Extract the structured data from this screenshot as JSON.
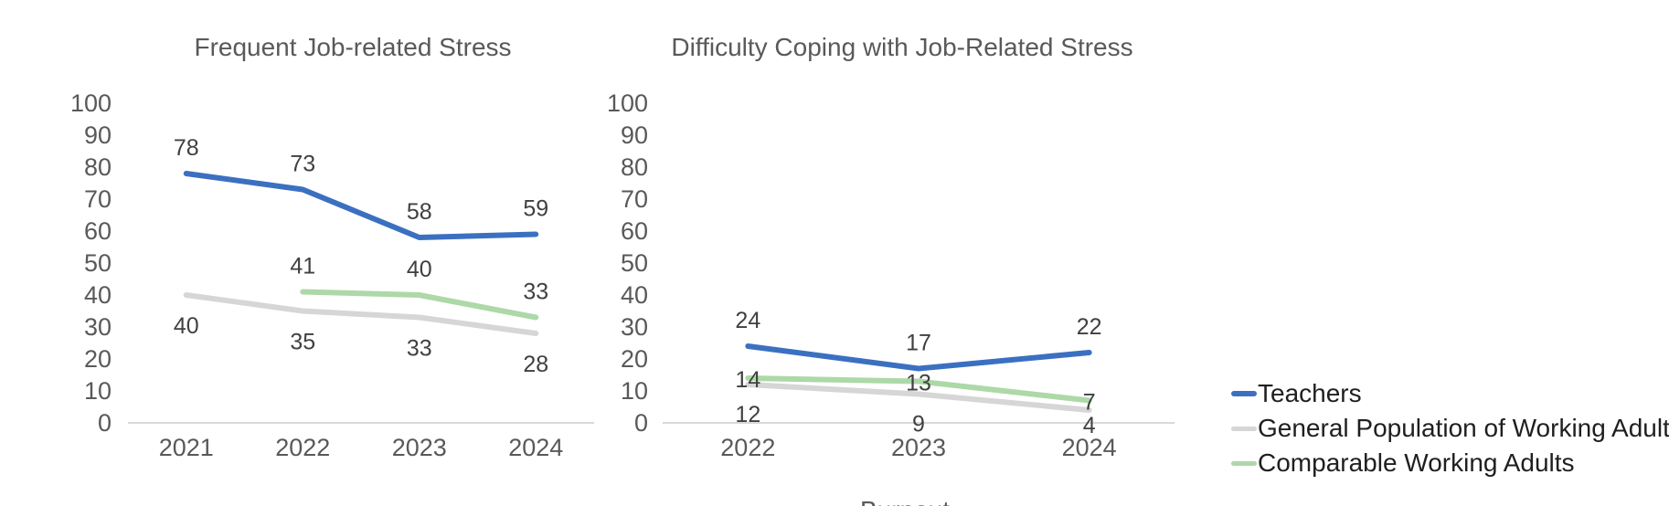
{
  "colors": {
    "teachers": "#3B70C1",
    "general_population": "#D6D6D6",
    "comparable_adults": "#ADD8A8",
    "axis_line": "#D9D9D9",
    "axis_text": "#595959",
    "data_label_text": "#404040",
    "title_text": "#595959",
    "legend_text": "#1F1F1F",
    "background": "#FFFFFF"
  },
  "chart_data": [
    {
      "type": "line",
      "title": "Frequent Job-related Stress",
      "categories": [
        "2021",
        "2022",
        "2023",
        "2024"
      ],
      "xlabel": "",
      "ylabel": "",
      "ylim": [
        0,
        100
      ],
      "ytick_step": 10,
      "yticks": [
        0,
        10,
        20,
        30,
        40,
        50,
        60,
        70,
        80,
        90,
        100
      ],
      "grid": false,
      "data_labels": true,
      "series": [
        {
          "name": "General Population of Working Adults",
          "color_key": "general_population",
          "values": [
            40,
            35,
            33,
            28
          ]
        },
        {
          "name": "Comparable Working Adults",
          "color_key": "comparable_adults",
          "values": [
            null,
            41,
            40,
            33
          ]
        },
        {
          "name": "Teachers",
          "color_key": "teachers",
          "values": [
            78,
            73,
            58,
            59
          ]
        }
      ]
    },
    {
      "type": "line",
      "title": "Difficulty Coping with Job-Related Stress",
      "categories": [
        "2022",
        "2023",
        "2024"
      ],
      "xlabel": "",
      "ylabel": "",
      "ylim": [
        0,
        100
      ],
      "ytick_step": 10,
      "yticks": [
        0,
        10,
        20,
        30,
        40,
        50,
        60,
        70,
        80,
        90,
        100
      ],
      "grid": false,
      "data_labels": true,
      "series": [
        {
          "name": "General Population of Working Adults",
          "color_key": "general_population",
          "values": [
            12,
            9,
            4
          ]
        },
        {
          "name": "Comparable Working Adults",
          "color_key": "comparable_adults",
          "values": [
            14,
            13,
            7
          ]
        },
        {
          "name": "Teachers",
          "color_key": "teachers",
          "values": [
            24,
            17,
            22
          ]
        }
      ]
    }
  ],
  "legend": {
    "position": "right",
    "items": [
      {
        "label": "Teachers",
        "color_key": "teachers"
      },
      {
        "label": "General Population of Working Adults",
        "color_key": "general_population"
      },
      {
        "label": "Comparable Working Adults",
        "color_key": "comparable_adults"
      }
    ]
  },
  "partial_chart": {
    "title": "Burnout"
  }
}
